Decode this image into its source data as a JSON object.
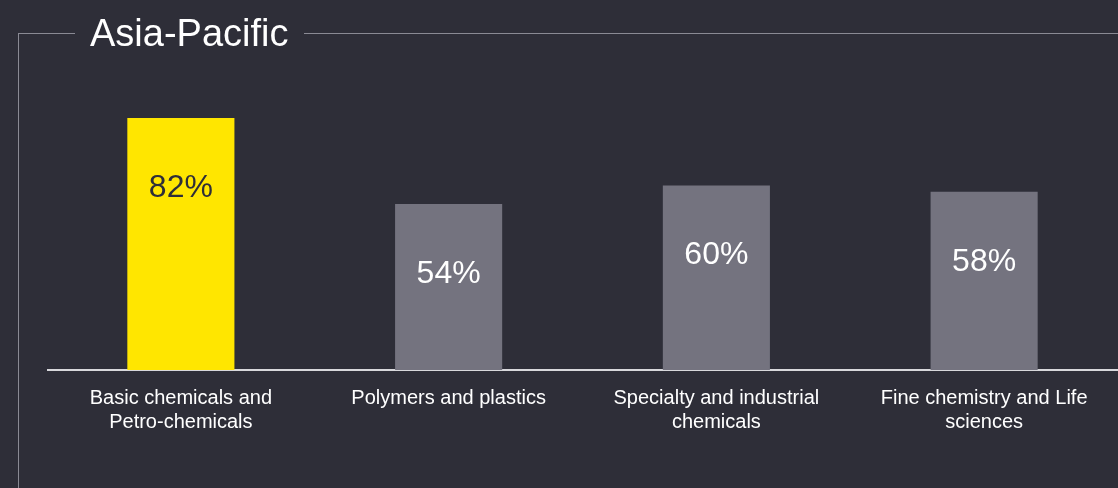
{
  "chart_data": {
    "type": "bar",
    "title": "Asia-Pacific",
    "categories": [
      "Basic chemicals and Petro-chemicals",
      "Polymers and plastics",
      "Specialty and industrial chemicals",
      "Fine chemistry and Life sciences"
    ],
    "values": [
      82,
      54,
      60,
      58
    ],
    "colors": [
      "#ffe600",
      "#74737f",
      "#74737f",
      "#74737f"
    ],
    "value_labels": [
      "82%",
      "54%",
      "60%",
      "58%"
    ],
    "grid": false,
    "legend": false
  }
}
